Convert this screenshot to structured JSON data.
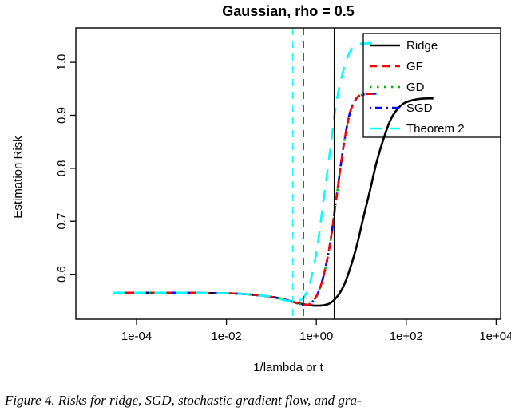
{
  "caption": "Figure 4. Risks for ridge, SGD, stochastic gradient flow, and gra-",
  "chart_data": {
    "type": "line",
    "title": "Gaussian, rho = 0.5",
    "xlabel": "1/lambda or t",
    "ylabel": "Estimation Risk",
    "x_scale": "log10",
    "x_log_range": [
      -5.35,
      4.1
    ],
    "y_range": [
      0.515,
      1.065
    ],
    "grid": "off",
    "legend_position": "topright",
    "x_ticks": [
      {
        "v": 0.0001,
        "label": "1e-04"
      },
      {
        "v": 0.01,
        "label": "1e-02"
      },
      {
        "v": 1,
        "label": "1e+00"
      },
      {
        "v": 100,
        "label": "1e+02"
      },
      {
        "v": 10000,
        "label": "1e+04"
      }
    ],
    "y_ticks": [
      {
        "v": 0.6,
        "label": "0.6"
      },
      {
        "v": 0.7,
        "label": "0.7"
      },
      {
        "v": 0.8,
        "label": "0.8"
      },
      {
        "v": 0.9,
        "label": "0.9"
      },
      {
        "v": 1.0,
        "label": "1.0"
      }
    ],
    "series": [
      {
        "name": "Ridge",
        "color": "#000000",
        "dash": "solid",
        "width": 2.6,
        "x": [
          3e-05,
          0.0001,
          0.0003,
          0.001,
          0.003,
          0.01,
          0.02,
          0.04,
          0.07,
          0.1,
          0.15,
          0.22,
          0.33,
          0.5,
          0.7,
          1,
          1.4,
          2,
          2.8,
          4,
          5.6,
          8,
          11,
          16,
          22,
          32,
          45,
          64,
          90,
          130,
          200,
          300,
          400
        ],
        "y": [
          0.565,
          0.565,
          0.565,
          0.565,
          0.5645,
          0.564,
          0.563,
          0.561,
          0.559,
          0.557,
          0.5545,
          0.551,
          0.547,
          0.5435,
          0.5415,
          0.5405,
          0.541,
          0.545,
          0.556,
          0.577,
          0.61,
          0.655,
          0.705,
          0.762,
          0.812,
          0.858,
          0.892,
          0.912,
          0.923,
          0.928,
          0.931,
          0.932,
          0.932
        ]
      },
      {
        "name": "GF",
        "color": "#FF0000",
        "dash": "dashed",
        "width": 2.6,
        "x": [
          3e-05,
          0.0001,
          0.0003,
          0.001,
          0.003,
          0.01,
          0.02,
          0.04,
          0.07,
          0.1,
          0.15,
          0.22,
          0.33,
          0.5,
          0.7,
          1,
          1.4,
          2,
          2.8,
          4,
          5.6,
          8,
          11,
          16,
          22
        ],
        "y": [
          0.565,
          0.565,
          0.565,
          0.565,
          0.5645,
          0.564,
          0.563,
          0.561,
          0.559,
          0.557,
          0.5545,
          0.551,
          0.5465,
          0.5425,
          0.5435,
          0.558,
          0.592,
          0.655,
          0.745,
          0.84,
          0.905,
          0.933,
          0.939,
          0.9405,
          0.941
        ]
      },
      {
        "name": "GD",
        "color": "#00B400",
        "dash": "dotted",
        "width": 2.6,
        "x": [
          3e-05,
          0.0001,
          0.0003,
          0.001,
          0.003,
          0.01,
          0.02,
          0.04,
          0.07,
          0.1,
          0.15,
          0.22,
          0.33,
          0.5,
          0.7,
          1,
          1.4,
          2,
          2.8,
          4,
          5.6,
          8,
          11,
          16,
          22
        ],
        "y": [
          0.565,
          0.565,
          0.565,
          0.565,
          0.5645,
          0.564,
          0.563,
          0.561,
          0.559,
          0.557,
          0.5545,
          0.551,
          0.5465,
          0.5425,
          0.5435,
          0.558,
          0.592,
          0.655,
          0.745,
          0.84,
          0.905,
          0.933,
          0.939,
          0.9405,
          0.941
        ]
      },
      {
        "name": "SGD",
        "color": "#0000FF",
        "dash": "dashdot",
        "width": 2.6,
        "x": [
          3e-05,
          0.0001,
          0.0003,
          0.001,
          0.003,
          0.01,
          0.02,
          0.04,
          0.07,
          0.1,
          0.15,
          0.22,
          0.33,
          0.5,
          0.7,
          1,
          1.4,
          2,
          2.8,
          4,
          5.6,
          8,
          11,
          16,
          22
        ],
        "y": [
          0.565,
          0.565,
          0.565,
          0.565,
          0.5645,
          0.564,
          0.563,
          0.561,
          0.559,
          0.557,
          0.5545,
          0.551,
          0.5465,
          0.5425,
          0.5435,
          0.558,
          0.592,
          0.655,
          0.745,
          0.84,
          0.905,
          0.933,
          0.939,
          0.9405,
          0.941
        ]
      },
      {
        "name": "Theorem 2",
        "color": "#00FFFF",
        "dash": "longdash",
        "width": 2.6,
        "x": [
          3e-05,
          0.0001,
          0.0003,
          0.001,
          0.003,
          0.01,
          0.02,
          0.04,
          0.07,
          0.1,
          0.15,
          0.22,
          0.33,
          0.5,
          0.7,
          1,
          1.4,
          2,
          2.8,
          4,
          5.6,
          8,
          11,
          16,
          22
        ],
        "y": [
          0.565,
          0.565,
          0.565,
          0.565,
          0.5645,
          0.564,
          0.563,
          0.561,
          0.559,
          0.5575,
          0.5535,
          0.55,
          0.549,
          0.5545,
          0.58,
          0.64,
          0.73,
          0.83,
          0.925,
          0.985,
          1.02,
          1.033,
          1.0355,
          1.036,
          1.036
        ]
      }
    ],
    "vlines": [
      {
        "x": 0.3,
        "color": "#00FFFF",
        "dash": "dashed",
        "width": 1.3
      },
      {
        "x": 0.52,
        "color": "#8B008B",
        "dash": "dashed",
        "width": 1.3
      },
      {
        "x": 2.5,
        "color": "#000000",
        "dash": "solid",
        "width": 1.3
      }
    ]
  }
}
